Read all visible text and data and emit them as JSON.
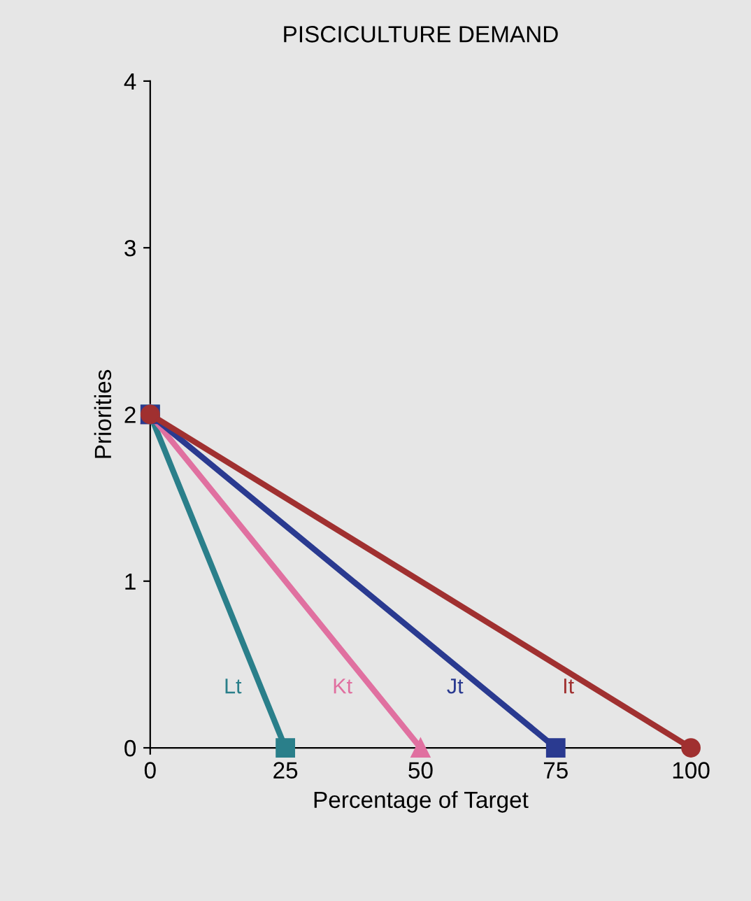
{
  "chart_data": {
    "type": "line",
    "title": "PISCICULTURE DEMAND",
    "xlabel": "Percentage of Target",
    "ylabel": "Priorities",
    "xlim": [
      0,
      100
    ],
    "ylim": [
      0,
      4
    ],
    "xticks": [
      0,
      25,
      50,
      75,
      100
    ],
    "yticks": [
      0,
      1,
      2,
      3,
      4
    ],
    "grid": false,
    "legend": false,
    "series": [
      {
        "name": "Lt",
        "color": "#2a7f8a",
        "x": [
          0,
          25
        ],
        "values": [
          2,
          0
        ],
        "marker": "square"
      },
      {
        "name": "Kt",
        "color": "#e070a0",
        "x": [
          0,
          50
        ],
        "values": [
          2,
          0
        ],
        "marker": "triangle"
      },
      {
        "name": "Jt",
        "color": "#2a3a90",
        "x": [
          0,
          75
        ],
        "values": [
          2,
          0
        ],
        "marker": "square"
      },
      {
        "name": "It",
        "color": "#a03030",
        "x": [
          0,
          100
        ],
        "values": [
          2,
          0
        ],
        "marker": "circle"
      }
    ]
  }
}
